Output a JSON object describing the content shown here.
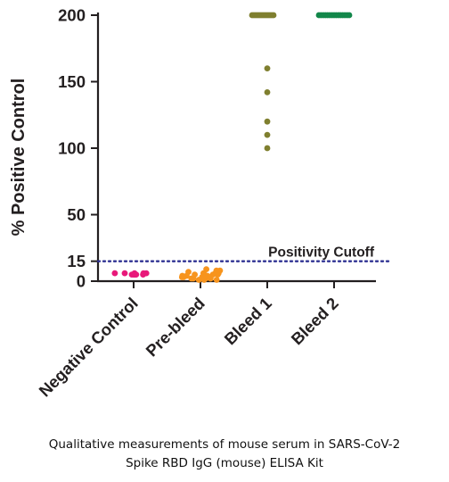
{
  "chart_data": {
    "type": "scatter",
    "ylabel": "% Positive Control",
    "yticks": [
      0,
      15,
      50,
      100,
      150,
      200
    ],
    "ylim": [
      0,
      200
    ],
    "grid": false,
    "categories": [
      "Negative Control",
      "Pre-bleed",
      "Bleed 1",
      "Bleed 2"
    ],
    "series": [
      {
        "category": "Negative Control",
        "color": "#e8197a",
        "values": [
          5,
          5,
          5,
          6,
          6,
          6,
          5,
          5,
          6,
          6
        ]
      },
      {
        "category": "Pre-bleed",
        "color": "#f7941d",
        "values": [
          1,
          2,
          3,
          4,
          5,
          6,
          7,
          8,
          9,
          2,
          3,
          4,
          5,
          6,
          3,
          2,
          4,
          6,
          1,
          3,
          5,
          7,
          2,
          4,
          8,
          1,
          3,
          5,
          2,
          4
        ]
      },
      {
        "category": "Bleed 1",
        "color": "#7f7f2f",
        "values": [
          200,
          200,
          200,
          200,
          200,
          200,
          200,
          200,
          200,
          200,
          200,
          200,
          200,
          160,
          142,
          120,
          110,
          100
        ]
      },
      {
        "category": "Bleed 2",
        "color": "#12874a",
        "values": [
          200,
          200,
          200,
          200,
          200,
          200,
          200,
          200,
          200,
          200,
          200,
          200,
          200,
          200,
          200
        ]
      }
    ],
    "reference_line": {
      "value": 15,
      "label": "Positivity Cutoff",
      "color": "#2e3192",
      "style": "dotted"
    }
  },
  "caption": {
    "line1": "Qualitative measurements of mouse serum in SARS-CoV-2",
    "line2": "Spike RBD IgG (mouse) ELISA Kit"
  }
}
